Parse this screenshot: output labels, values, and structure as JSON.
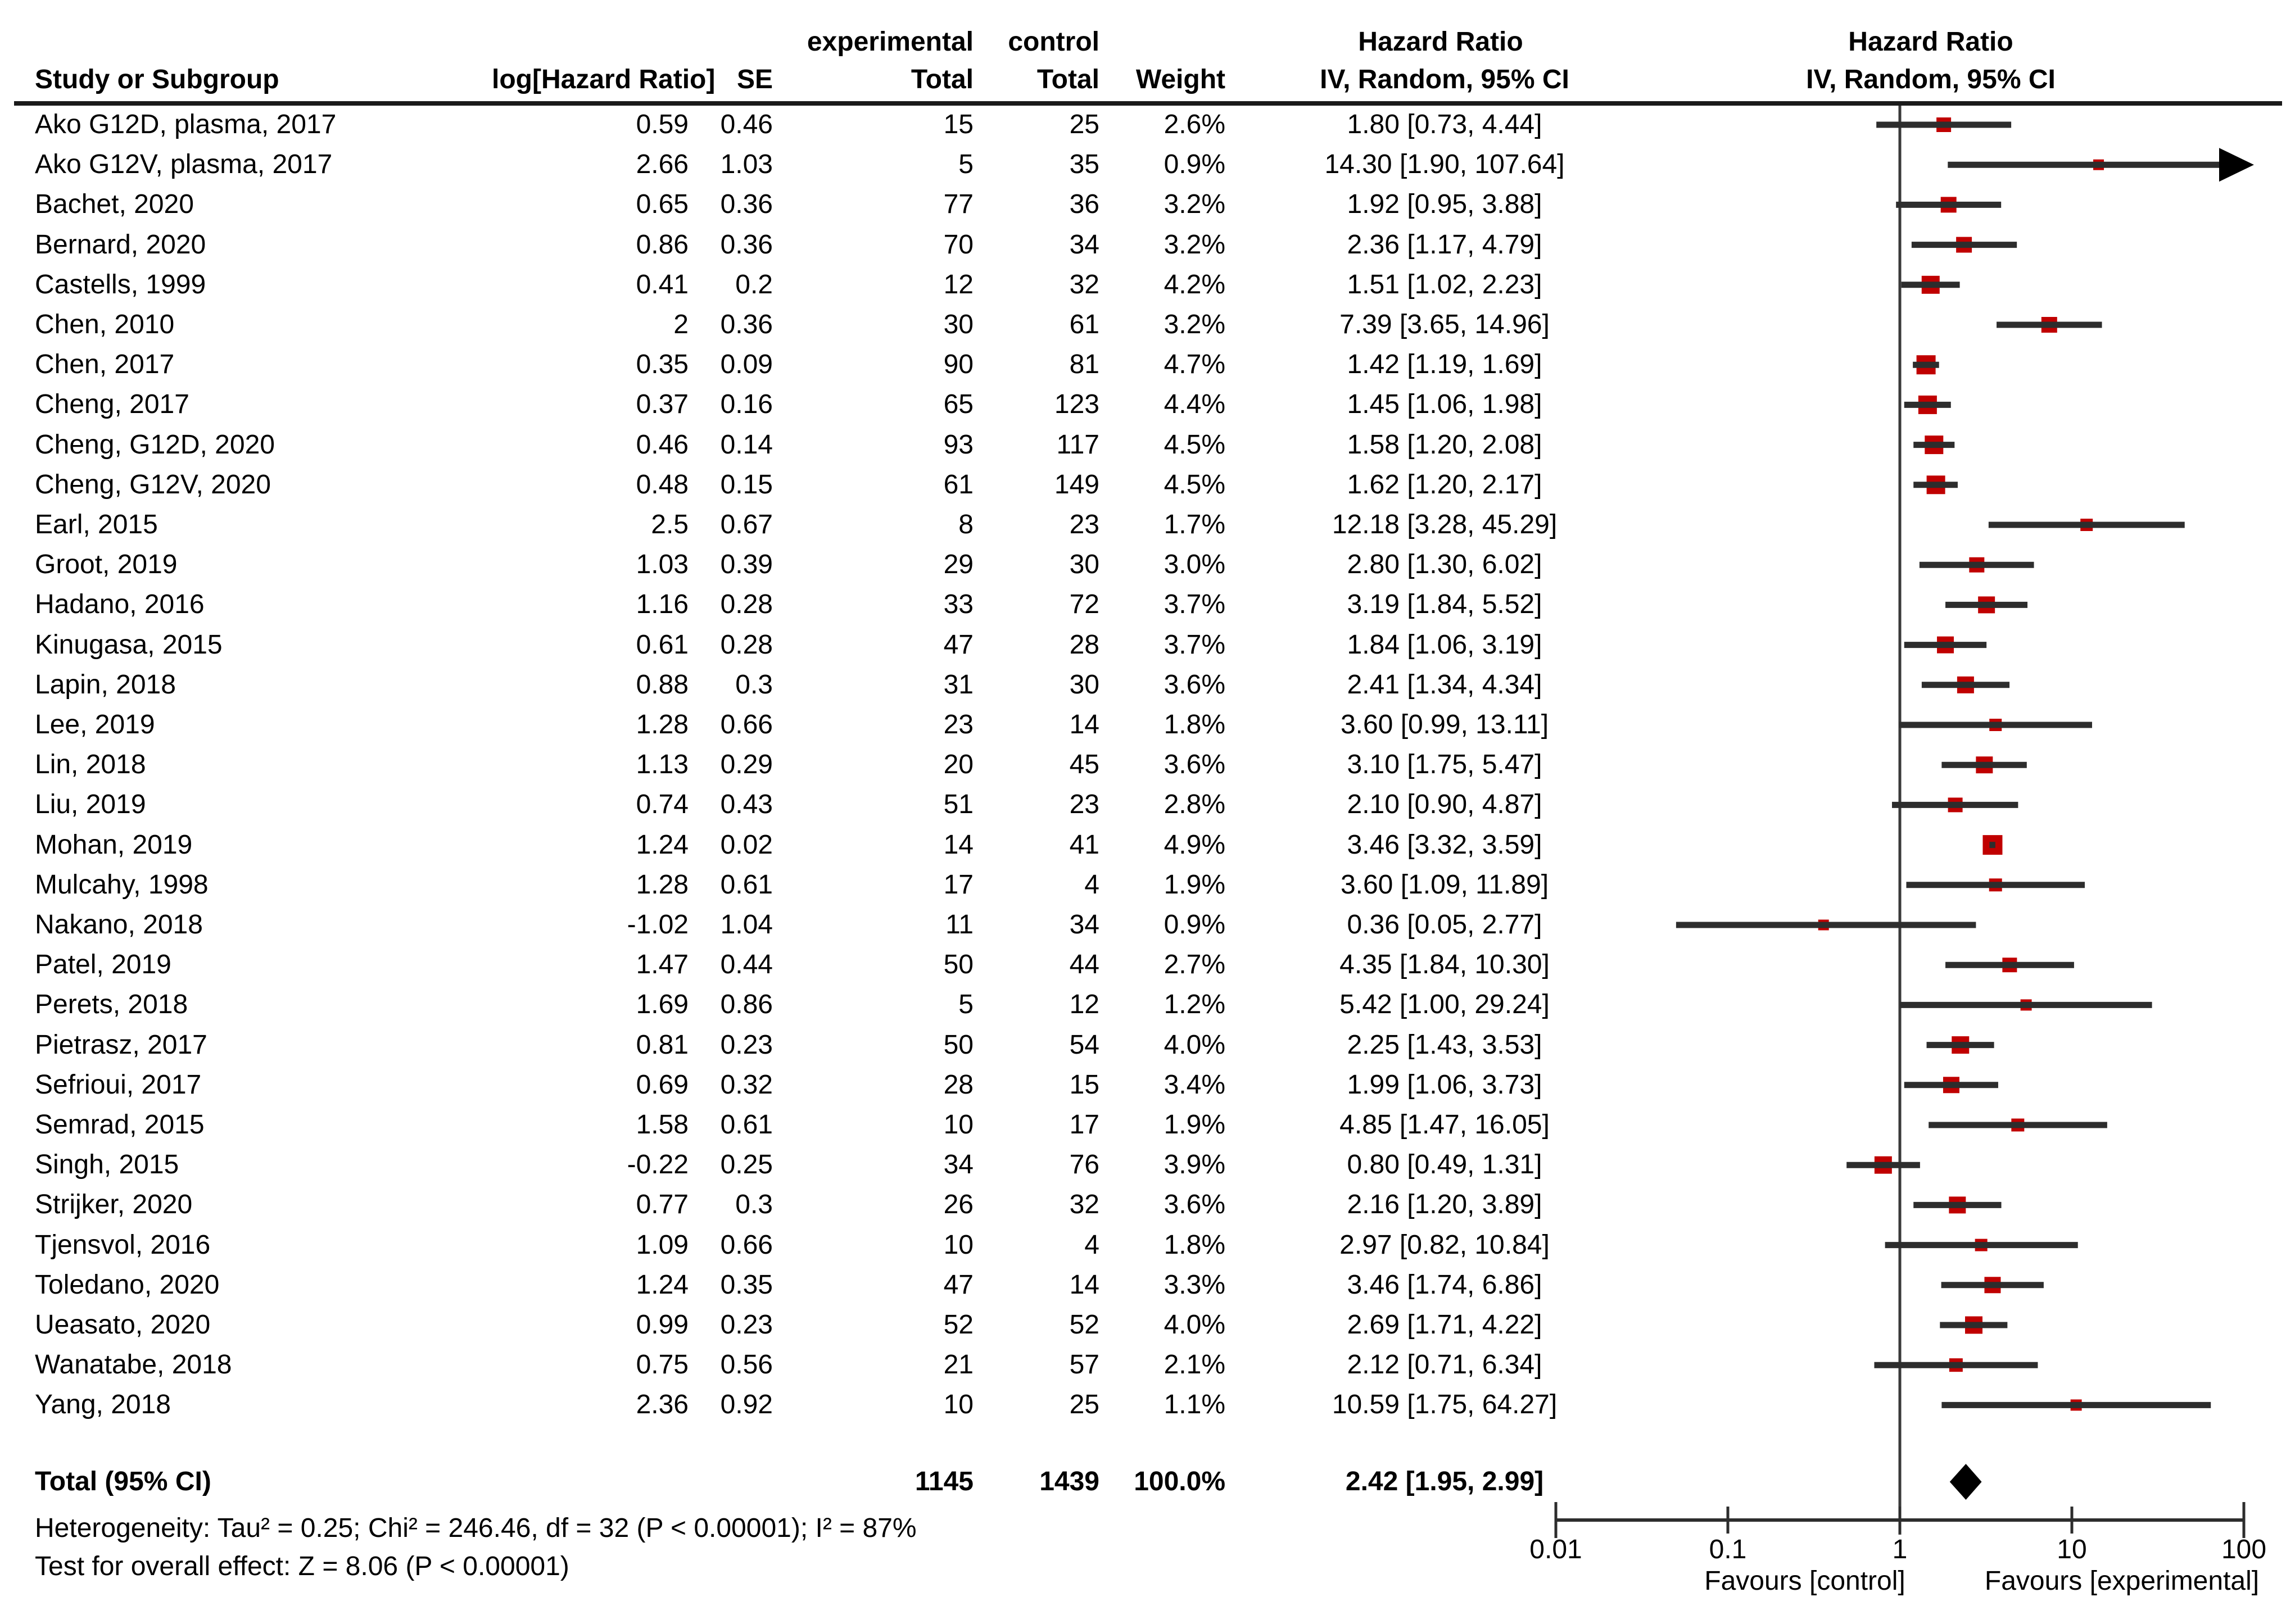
{
  "header": {
    "group_experimental": "experimental",
    "group_control": "control",
    "hazard_ratio_text_col": "Hazard Ratio",
    "hazard_ratio_plot_col": "Hazard Ratio",
    "study": "Study or Subgroup",
    "log_hr": "log[Hazard Ratio]",
    "se": "SE",
    "total_experimental": "Total",
    "total_control": "Total",
    "weight": "Weight",
    "iv_random_text_col": "IV, Random, 95% CI",
    "iv_random_plot_col": "IV, Random, 95% CI"
  },
  "chart_data": {
    "type": "forest",
    "x_axis": {
      "scale": "log",
      "ticks": [
        0.01,
        0.1,
        1,
        10,
        100
      ],
      "tick_labels": [
        "0.01",
        "0.1",
        "1",
        "10",
        "100"
      ],
      "left_label": "Favours [control]",
      "right_label": "Favours [experimental]"
    },
    "studies": [
      {
        "name": "Ako G12D, plasma, 2017",
        "log_hr": "0.59",
        "se": "0.46",
        "exp_total": "15",
        "ctrl_total": "25",
        "weight": "2.6%",
        "weight_num": 2.6,
        "ci_label": "1.80 [0.73, 4.44]",
        "hr": 1.8,
        "lo": 0.73,
        "hi": 4.44
      },
      {
        "name": "Ako G12V, plasma, 2017",
        "log_hr": "2.66",
        "se": "1.03",
        "exp_total": "5",
        "ctrl_total": "35",
        "weight": "0.9%",
        "weight_num": 0.9,
        "ci_label": "14.30 [1.90, 107.64]",
        "hr": 14.3,
        "lo": 1.9,
        "hi": 107.64
      },
      {
        "name": "Bachet, 2020",
        "log_hr": "0.65",
        "se": "0.36",
        "exp_total": "77",
        "ctrl_total": "36",
        "weight": "3.2%",
        "weight_num": 3.2,
        "ci_label": "1.92 [0.95, 3.88]",
        "hr": 1.92,
        "lo": 0.95,
        "hi": 3.88
      },
      {
        "name": "Bernard, 2020",
        "log_hr": "0.86",
        "se": "0.36",
        "exp_total": "70",
        "ctrl_total": "34",
        "weight": "3.2%",
        "weight_num": 3.2,
        "ci_label": "2.36 [1.17, 4.79]",
        "hr": 2.36,
        "lo": 1.17,
        "hi": 4.79
      },
      {
        "name": "Castells, 1999",
        "log_hr": "0.41",
        "se": "0.2",
        "exp_total": "12",
        "ctrl_total": "32",
        "weight": "4.2%",
        "weight_num": 4.2,
        "ci_label": "1.51 [1.02, 2.23]",
        "hr": 1.51,
        "lo": 1.02,
        "hi": 2.23
      },
      {
        "name": "Chen, 2010",
        "log_hr": "2",
        "se": "0.36",
        "exp_total": "30",
        "ctrl_total": "61",
        "weight": "3.2%",
        "weight_num": 3.2,
        "ci_label": "7.39 [3.65, 14.96]",
        "hr": 7.39,
        "lo": 3.65,
        "hi": 14.96
      },
      {
        "name": "Chen, 2017",
        "log_hr": "0.35",
        "se": "0.09",
        "exp_total": "90",
        "ctrl_total": "81",
        "weight": "4.7%",
        "weight_num": 4.7,
        "ci_label": "1.42 [1.19, 1.69]",
        "hr": 1.42,
        "lo": 1.19,
        "hi": 1.69
      },
      {
        "name": "Cheng, 2017",
        "log_hr": "0.37",
        "se": "0.16",
        "exp_total": "65",
        "ctrl_total": "123",
        "weight": "4.4%",
        "weight_num": 4.4,
        "ci_label": "1.45 [1.06, 1.98]",
        "hr": 1.45,
        "lo": 1.06,
        "hi": 1.98
      },
      {
        "name": "Cheng, G12D, 2020",
        "log_hr": "0.46",
        "se": "0.14",
        "exp_total": "93",
        "ctrl_total": "117",
        "weight": "4.5%",
        "weight_num": 4.5,
        "ci_label": "1.58 [1.20, 2.08]",
        "hr": 1.58,
        "lo": 1.2,
        "hi": 2.08
      },
      {
        "name": "Cheng, G12V, 2020",
        "log_hr": "0.48",
        "se": "0.15",
        "exp_total": "61",
        "ctrl_total": "149",
        "weight": "4.5%",
        "weight_num": 4.5,
        "ci_label": "1.62 [1.20, 2.17]",
        "hr": 1.62,
        "lo": 1.2,
        "hi": 2.17
      },
      {
        "name": "Earl, 2015",
        "log_hr": "2.5",
        "se": "0.67",
        "exp_total": "8",
        "ctrl_total": "23",
        "weight": "1.7%",
        "weight_num": 1.7,
        "ci_label": "12.18 [3.28, 45.29]",
        "hr": 12.18,
        "lo": 3.28,
        "hi": 45.29
      },
      {
        "name": "Groot, 2019",
        "log_hr": "1.03",
        "se": "0.39",
        "exp_total": "29",
        "ctrl_total": "30",
        "weight": "3.0%",
        "weight_num": 3.0,
        "ci_label": "2.80 [1.30, 6.02]",
        "hr": 2.8,
        "lo": 1.3,
        "hi": 6.02
      },
      {
        "name": "Hadano, 2016",
        "log_hr": "1.16",
        "se": "0.28",
        "exp_total": "33",
        "ctrl_total": "72",
        "weight": "3.7%",
        "weight_num": 3.7,
        "ci_label": "3.19 [1.84, 5.52]",
        "hr": 3.19,
        "lo": 1.84,
        "hi": 5.52
      },
      {
        "name": "Kinugasa, 2015",
        "log_hr": "0.61",
        "se": "0.28",
        "exp_total": "47",
        "ctrl_total": "28",
        "weight": "3.7%",
        "weight_num": 3.7,
        "ci_label": "1.84 [1.06, 3.19]",
        "hr": 1.84,
        "lo": 1.06,
        "hi": 3.19
      },
      {
        "name": "Lapin, 2018",
        "log_hr": "0.88",
        "se": "0.3",
        "exp_total": "31",
        "ctrl_total": "30",
        "weight": "3.6%",
        "weight_num": 3.6,
        "ci_label": "2.41 [1.34, 4.34]",
        "hr": 2.41,
        "lo": 1.34,
        "hi": 4.34
      },
      {
        "name": "Lee, 2019",
        "log_hr": "1.28",
        "se": "0.66",
        "exp_total": "23",
        "ctrl_total": "14",
        "weight": "1.8%",
        "weight_num": 1.8,
        "ci_label": "3.60 [0.99, 13.11]",
        "hr": 3.6,
        "lo": 0.99,
        "hi": 13.11
      },
      {
        "name": "Lin, 2018",
        "log_hr": "1.13",
        "se": "0.29",
        "exp_total": "20",
        "ctrl_total": "45",
        "weight": "3.6%",
        "weight_num": 3.6,
        "ci_label": "3.10 [1.75, 5.47]",
        "hr": 3.1,
        "lo": 1.75,
        "hi": 5.47
      },
      {
        "name": "Liu, 2019",
        "log_hr": "0.74",
        "se": "0.43",
        "exp_total": "51",
        "ctrl_total": "23",
        "weight": "2.8%",
        "weight_num": 2.8,
        "ci_label": "2.10 [0.90, 4.87]",
        "hr": 2.1,
        "lo": 0.9,
        "hi": 4.87
      },
      {
        "name": "Mohan, 2019",
        "log_hr": "1.24",
        "se": "0.02",
        "exp_total": "14",
        "ctrl_total": "41",
        "weight": "4.9%",
        "weight_num": 4.9,
        "ci_label": "3.46 [3.32, 3.59]",
        "hr": 3.46,
        "lo": 3.32,
        "hi": 3.59
      },
      {
        "name": "Mulcahy, 1998",
        "log_hr": "1.28",
        "se": "0.61",
        "exp_total": "17",
        "ctrl_total": "4",
        "weight": "1.9%",
        "weight_num": 1.9,
        "ci_label": "3.60 [1.09, 11.89]",
        "hr": 3.6,
        "lo": 1.09,
        "hi": 11.89
      },
      {
        "name": "Nakano, 2018",
        "log_hr": "-1.02",
        "se": "1.04",
        "exp_total": "11",
        "ctrl_total": "34",
        "weight": "0.9%",
        "weight_num": 0.9,
        "ci_label": "0.36 [0.05, 2.77]",
        "hr": 0.36,
        "lo": 0.05,
        "hi": 2.77
      },
      {
        "name": "Patel, 2019",
        "log_hr": "1.47",
        "se": "0.44",
        "exp_total": "50",
        "ctrl_total": "44",
        "weight": "2.7%",
        "weight_num": 2.7,
        "ci_label": "4.35 [1.84, 10.30]",
        "hr": 4.35,
        "lo": 1.84,
        "hi": 10.3
      },
      {
        "name": "Perets, 2018",
        "log_hr": "1.69",
        "se": "0.86",
        "exp_total": "5",
        "ctrl_total": "12",
        "weight": "1.2%",
        "weight_num": 1.2,
        "ci_label": "5.42 [1.00, 29.24]",
        "hr": 5.42,
        "lo": 1.0,
        "hi": 29.24
      },
      {
        "name": "Pietrasz, 2017",
        "log_hr": "0.81",
        "se": "0.23",
        "exp_total": "50",
        "ctrl_total": "54",
        "weight": "4.0%",
        "weight_num": 4.0,
        "ci_label": "2.25 [1.43, 3.53]",
        "hr": 2.25,
        "lo": 1.43,
        "hi": 3.53
      },
      {
        "name": "Sefrioui, 2017",
        "log_hr": "0.69",
        "se": "0.32",
        "exp_total": "28",
        "ctrl_total": "15",
        "weight": "3.4%",
        "weight_num": 3.4,
        "ci_label": "1.99 [1.06, 3.73]",
        "hr": 1.99,
        "lo": 1.06,
        "hi": 3.73
      },
      {
        "name": "Semrad, 2015",
        "log_hr": "1.58",
        "se": "0.61",
        "exp_total": "10",
        "ctrl_total": "17",
        "weight": "1.9%",
        "weight_num": 1.9,
        "ci_label": "4.85 [1.47, 16.05]",
        "hr": 4.85,
        "lo": 1.47,
        "hi": 16.05
      },
      {
        "name": "Singh, 2015",
        "log_hr": "-0.22",
        "se": "0.25",
        "exp_total": "34",
        "ctrl_total": "76",
        "weight": "3.9%",
        "weight_num": 3.9,
        "ci_label": "0.80 [0.49, 1.31]",
        "hr": 0.8,
        "lo": 0.49,
        "hi": 1.31
      },
      {
        "name": "Strijker, 2020",
        "log_hr": "0.77",
        "se": "0.3",
        "exp_total": "26",
        "ctrl_total": "32",
        "weight": "3.6%",
        "weight_num": 3.6,
        "ci_label": "2.16 [1.20, 3.89]",
        "hr": 2.16,
        "lo": 1.2,
        "hi": 3.89
      },
      {
        "name": "Tjensvol, 2016",
        "log_hr": "1.09",
        "se": "0.66",
        "exp_total": "10",
        "ctrl_total": "4",
        "weight": "1.8%",
        "weight_num": 1.8,
        "ci_label": "2.97 [0.82, 10.84]",
        "hr": 2.97,
        "lo": 0.82,
        "hi": 10.84
      },
      {
        "name": "Toledano, 2020",
        "log_hr": "1.24",
        "se": "0.35",
        "exp_total": "47",
        "ctrl_total": "14",
        "weight": "3.3%",
        "weight_num": 3.3,
        "ci_label": "3.46 [1.74, 6.86]",
        "hr": 3.46,
        "lo": 1.74,
        "hi": 6.86
      },
      {
        "name": "Ueasato, 2020",
        "log_hr": "0.99",
        "se": "0.23",
        "exp_total": "52",
        "ctrl_total": "52",
        "weight": "4.0%",
        "weight_num": 4.0,
        "ci_label": "2.69 [1.71, 4.22]",
        "hr": 2.69,
        "lo": 1.71,
        "hi": 4.22
      },
      {
        "name": "Wanatabe, 2018",
        "log_hr": "0.75",
        "se": "0.56",
        "exp_total": "21",
        "ctrl_total": "57",
        "weight": "2.1%",
        "weight_num": 2.1,
        "ci_label": "2.12 [0.71, 6.34]",
        "hr": 2.12,
        "lo": 0.71,
        "hi": 6.34
      },
      {
        "name": "Yang, 2018",
        "log_hr": "2.36",
        "se": "0.92",
        "exp_total": "10",
        "ctrl_total": "25",
        "weight": "1.1%",
        "weight_num": 1.1,
        "ci_label": "10.59 [1.75, 64.27]",
        "hr": 10.59,
        "lo": 1.75,
        "hi": 64.27
      }
    ],
    "total": {
      "label": "Total (95% CI)",
      "exp_total": "1145",
      "ctrl_total": "1439",
      "weight": "100.0%",
      "ci_label": "2.42 [1.95, 2.99]",
      "hr": 2.42,
      "lo": 1.95,
      "hi": 2.99
    },
    "heterogeneity": "Heterogeneity: Tau² = 0.25; Chi² = 246.46, df = 32 (P < 0.00001); I² = 87%",
    "overall_effect": "Test for overall effect: Z = 8.06 (P < 0.00001)"
  },
  "colors": {
    "marker": "#c00000",
    "ci_line": "#2d2d2d",
    "axis_line": "#2d2d2d",
    "diamond": "#000000",
    "rule": "#1a1a1a"
  }
}
